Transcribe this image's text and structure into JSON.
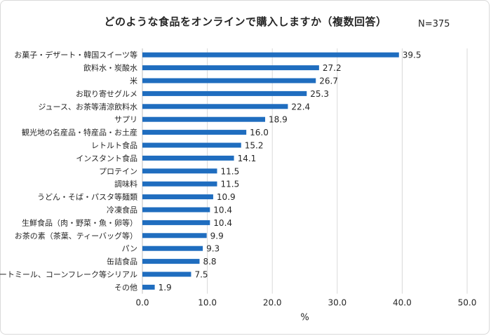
{
  "chart_data": {
    "type": "bar",
    "orientation": "horizontal",
    "title": "どのような食品をオンラインで購入しますか（複数回答）",
    "note": "N=375",
    "xlabel": "%",
    "ylabel": "",
    "xlim": [
      0,
      50
    ],
    "xticks": [
      "0.0",
      "10.0",
      "20.0",
      "30.0",
      "40.0",
      "50.0"
    ],
    "grid": true,
    "bar_color": "#1f6dbf",
    "categories": [
      "お菓子・デザート・韓国スイーツ等",
      "飲料水・炭酸水",
      "米",
      "お取り寄せグルメ",
      "ジュース、お茶等清涼飲料水",
      "サプリ",
      "観光地の名産品・特産品・お土産",
      "レトルト食品",
      "インスタント食品",
      "プロテイン",
      "調味料",
      "うどん・そば・パスタ等麺類",
      "冷凍食品",
      "生鮮食品（肉・野菜・魚・卵等）",
      "お茶の素（茶葉、ティーバッグ等）",
      "パン",
      "缶詰食品",
      "オートミール、コーンフレーク等シリアル",
      "その他"
    ],
    "values": [
      39.5,
      27.2,
      26.7,
      25.3,
      22.4,
      18.9,
      16.0,
      15.2,
      14.1,
      11.5,
      11.5,
      10.9,
      10.4,
      10.4,
      9.9,
      9.3,
      8.8,
      7.5,
      1.9
    ],
    "labels": [
      "39.5",
      "27.2",
      "26.7",
      "25.3",
      "22.4",
      "18.9",
      "16.0",
      "15.2",
      "14.1",
      "11.5",
      "11.5",
      "10.9",
      "10.4",
      "10.4",
      "9.9",
      "9.3",
      "8.8",
      "7.5",
      "1.9"
    ]
  }
}
